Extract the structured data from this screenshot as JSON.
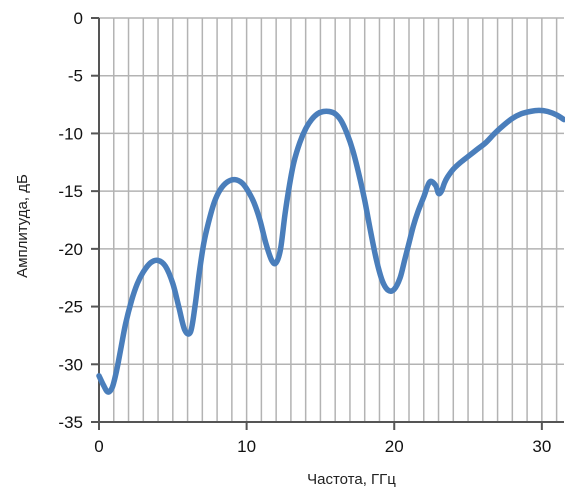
{
  "chart_data": {
    "type": "line",
    "xlabel": "Частота, ГГц",
    "ylabel": "Амплитуда, дБ",
    "xlim": [
      0,
      31.5
    ],
    "ylim": [
      -35,
      0
    ],
    "x_ticks": [
      0,
      10,
      20,
      30
    ],
    "y_ticks": [
      0,
      -5,
      -10,
      -15,
      -20,
      -25,
      -30,
      -35
    ],
    "x_tick_labels": [
      "0",
      "10",
      "20",
      "30"
    ],
    "y_tick_labels": [
      "0",
      "-5",
      "-10",
      "-15",
      "-20",
      "-25",
      "-30",
      "-35"
    ],
    "grid": true,
    "line_color": "#4a7ebb",
    "grid_color": "#b3b3b3",
    "series": [
      {
        "x": [
          0.0,
          0.3,
          0.6,
          0.9,
          1.2,
          1.5,
          1.8,
          2.2,
          2.6,
          3.0,
          3.5,
          4.0,
          4.5,
          5.0,
          5.4,
          5.8,
          6.2,
          6.5,
          6.8,
          7.1,
          7.4,
          7.8,
          8.2,
          8.7,
          9.2,
          9.7,
          10.1,
          10.5,
          10.9,
          11.3,
          11.7,
          12.0,
          12.3,
          12.6,
          12.9,
          13.2,
          13.6,
          14.0,
          14.4,
          14.8,
          15.2,
          15.6,
          16.0,
          16.4,
          16.8,
          17.2,
          17.6,
          18.0,
          18.4,
          18.8,
          19.2,
          19.6,
          20.0,
          20.4,
          20.7,
          21.0,
          21.3,
          21.6,
          22.0,
          22.4,
          22.8,
          23.0,
          23.2,
          23.4,
          23.6,
          24.0,
          24.5,
          25.0,
          25.6,
          26.2,
          26.8,
          27.4,
          28.0,
          28.6,
          29.2,
          29.8,
          30.4,
          31.0,
          31.5
        ],
        "y": [
          -31.0,
          -31.8,
          -32.4,
          -32.0,
          -30.5,
          -28.5,
          -26.5,
          -24.5,
          -23.0,
          -22.0,
          -21.2,
          -21.0,
          -21.5,
          -23.0,
          -25.0,
          -27.0,
          -27.2,
          -25.0,
          -22.0,
          -19.5,
          -17.8,
          -16.0,
          -14.9,
          -14.2,
          -14.0,
          -14.3,
          -15.0,
          -16.0,
          -17.5,
          -19.5,
          -21.0,
          -21.2,
          -20.0,
          -17.0,
          -14.5,
          -12.5,
          -10.8,
          -9.6,
          -8.8,
          -8.3,
          -8.1,
          -8.1,
          -8.3,
          -8.9,
          -10.0,
          -11.5,
          -13.5,
          -15.8,
          -18.5,
          -21.0,
          -22.8,
          -23.6,
          -23.5,
          -22.5,
          -21.0,
          -19.5,
          -18.0,
          -16.8,
          -15.5,
          -14.2,
          -14.5,
          -15.2,
          -15.0,
          -14.3,
          -13.8,
          -13.1,
          -12.5,
          -12.0,
          -11.4,
          -10.8,
          -10.0,
          -9.3,
          -8.7,
          -8.3,
          -8.1,
          -8.0,
          -8.1,
          -8.4,
          -8.8
        ]
      }
    ]
  }
}
